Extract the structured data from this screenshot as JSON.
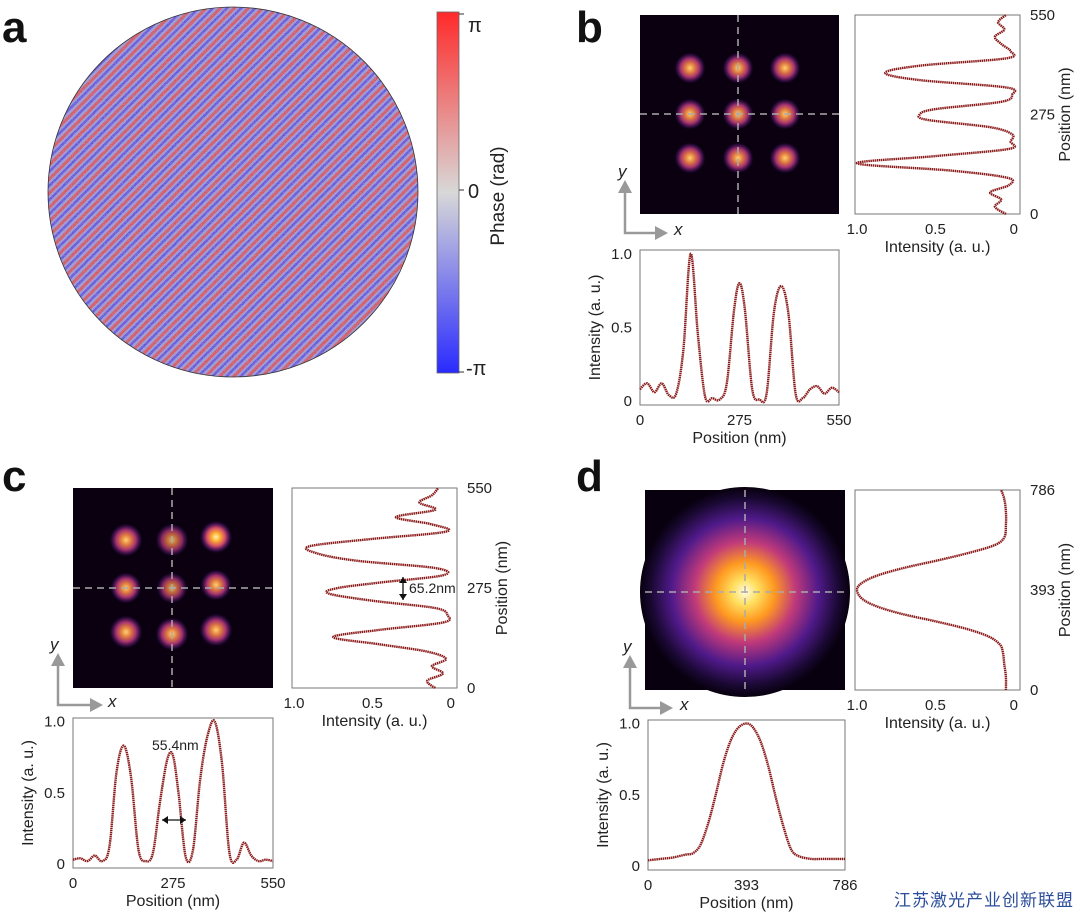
{
  "panels": {
    "a": {
      "letter": "a",
      "colorbar": {
        "top": "π",
        "mid": "0",
        "bottom": "-π",
        "label": "Phase (rad)",
        "colors": [
          "#2a2aff",
          "#d8d8d8",
          "#ff2a2a"
        ]
      }
    },
    "b": {
      "letter": "b"
    },
    "c": {
      "letter": "c",
      "annotation_x": "55.4nm",
      "annotation_y": "65.2nm"
    },
    "d": {
      "letter": "d"
    }
  },
  "axis_arrows": {
    "x": "x",
    "y": "y"
  },
  "watermark": "江苏激光产业创新联盟",
  "chart_data": [
    {
      "id": "b-bottom",
      "type": "line",
      "xlabel": "Position (nm)",
      "ylabel": "Intensity (a. u.)",
      "xlim": [
        0,
        550
      ],
      "ylim": [
        0,
        1
      ],
      "xticks": [
        "0",
        "275",
        "550"
      ],
      "yticks": [
        "0",
        "0.5",
        "1.0"
      ],
      "x": [
        0,
        20,
        40,
        60,
        80,
        100,
        120,
        140,
        160,
        180,
        200,
        220,
        240,
        260,
        275,
        290,
        310,
        330,
        350,
        370,
        390,
        410,
        430,
        450,
        470,
        490,
        510,
        530,
        550
      ],
      "y": [
        0.08,
        0.12,
        0.06,
        0.12,
        0.04,
        0.05,
        0.35,
        1.0,
        0.45,
        0.03,
        0.02,
        0.01,
        0.12,
        0.62,
        0.8,
        0.62,
        0.08,
        0.01,
        0.05,
        0.6,
        0.78,
        0.6,
        0.05,
        0.02,
        0.08,
        0.1,
        0.05,
        0.09,
        0.06
      ],
      "color": "#8b1a1a"
    },
    {
      "id": "b-right",
      "type": "line",
      "xlabel": "Intensity (a. u.)",
      "ylabel": "Position (nm)",
      "xlim": [
        1,
        0
      ],
      "ylim": [
        0,
        550
      ],
      "xticks": [
        "1.0",
        "0.5",
        "0"
      ],
      "yticks": [
        "0",
        "275",
        "550"
      ],
      "position": [
        0,
        20,
        40,
        60,
        80,
        100,
        120,
        140,
        160,
        180,
        200,
        220,
        240,
        260,
        275,
        290,
        310,
        330,
        350,
        370,
        390,
        410,
        430,
        450,
        470,
        490,
        510,
        530,
        550
      ],
      "intensity": [
        0.05,
        0.12,
        0.08,
        0.15,
        0.03,
        0.04,
        0.4,
        1.0,
        0.5,
        0.03,
        0.02,
        0.01,
        0.15,
        0.55,
        0.6,
        0.5,
        0.08,
        0.01,
        0.05,
        0.6,
        0.82,
        0.6,
        0.05,
        0.02,
        0.08,
        0.12,
        0.06,
        0.1,
        0.05
      ],
      "color": "#8b1a1a"
    },
    {
      "id": "c-bottom",
      "type": "line",
      "xlabel": "Position (nm)",
      "ylabel": "Intensity (a. u.)",
      "xlim": [
        0,
        550
      ],
      "ylim": [
        0,
        1
      ],
      "xticks": [
        "0",
        "275",
        "550"
      ],
      "yticks": [
        "0",
        "0.5",
        "1.0"
      ],
      "x": [
        0,
        20,
        40,
        60,
        80,
        100,
        120,
        140,
        160,
        180,
        200,
        220,
        240,
        260,
        275,
        290,
        310,
        330,
        350,
        370,
        390,
        410,
        430,
        450,
        470,
        490,
        510,
        530,
        550
      ],
      "y": [
        0.03,
        0.04,
        0.02,
        0.06,
        0.02,
        0.12,
        0.65,
        0.83,
        0.6,
        0.1,
        0.02,
        0.08,
        0.45,
        0.74,
        0.76,
        0.5,
        0.05,
        0.1,
        0.6,
        0.9,
        1.0,
        0.7,
        0.08,
        0.03,
        0.15,
        0.06,
        0.02,
        0.03,
        0.02
      ],
      "color": "#8b1a1a"
    },
    {
      "id": "c-right",
      "type": "line",
      "xlabel": "Intensity (a. u.)",
      "ylabel": "Position (nm)",
      "xlim": [
        1,
        0
      ],
      "ylim": [
        0,
        550
      ],
      "xticks": [
        "1.0",
        "0.5",
        "0"
      ],
      "yticks": [
        "0",
        "275",
        "550"
      ],
      "position": [
        0,
        20,
        40,
        60,
        80,
        100,
        120,
        140,
        160,
        180,
        200,
        220,
        240,
        260,
        275,
        290,
        310,
        330,
        350,
        370,
        390,
        410,
        430,
        450,
        470,
        490,
        510,
        530,
        550
      ],
      "intensity": [
        0.1,
        0.15,
        0.05,
        0.12,
        0.03,
        0.15,
        0.45,
        0.75,
        0.45,
        0.05,
        0.02,
        0.1,
        0.5,
        0.78,
        0.72,
        0.45,
        0.05,
        0.1,
        0.6,
        0.85,
        0.9,
        0.5,
        0.03,
        0.12,
        0.35,
        0.1,
        0.2,
        0.12,
        0.08
      ],
      "color": "#8b1a1a"
    },
    {
      "id": "d-bottom",
      "type": "line",
      "xlabel": "Position (nm)",
      "ylabel": "Intensity (a. u.)",
      "xlim": [
        0,
        786
      ],
      "ylim": [
        0,
        1
      ],
      "xticks": [
        "0",
        "393",
        "786"
      ],
      "yticks": [
        "0",
        "0.5",
        "1.0"
      ],
      "x": [
        0,
        50,
        100,
        150,
        180,
        210,
        240,
        270,
        300,
        330,
        360,
        393,
        420,
        450,
        480,
        510,
        540,
        570,
        600,
        650,
        700,
        750,
        786
      ],
      "y": [
        0.04,
        0.05,
        0.06,
        0.08,
        0.09,
        0.15,
        0.3,
        0.5,
        0.72,
        0.88,
        0.97,
        1.0,
        0.97,
        0.87,
        0.7,
        0.48,
        0.28,
        0.12,
        0.07,
        0.05,
        0.05,
        0.05,
        0.05
      ],
      "color": "#8b1a1a"
    },
    {
      "id": "d-right",
      "type": "line",
      "xlabel": "Intensity (a. u.)",
      "ylabel": "Position (nm)",
      "xlim": [
        1,
        0
      ],
      "ylim": [
        0,
        786
      ],
      "xticks": [
        "1.0",
        "0.5",
        "0"
      ],
      "yticks": [
        "0",
        "393",
        "786"
      ],
      "position": [
        0,
        50,
        100,
        150,
        180,
        210,
        240,
        270,
        300,
        330,
        360,
        393,
        420,
        450,
        480,
        510,
        540,
        570,
        600,
        650,
        700,
        750,
        786
      ],
      "intensity": [
        0.05,
        0.05,
        0.06,
        0.07,
        0.09,
        0.16,
        0.3,
        0.5,
        0.72,
        0.88,
        0.97,
        1.0,
        0.97,
        0.87,
        0.7,
        0.48,
        0.28,
        0.12,
        0.06,
        0.05,
        0.05,
        0.06,
        0.08
      ],
      "color": "#8b1a1a"
    }
  ]
}
